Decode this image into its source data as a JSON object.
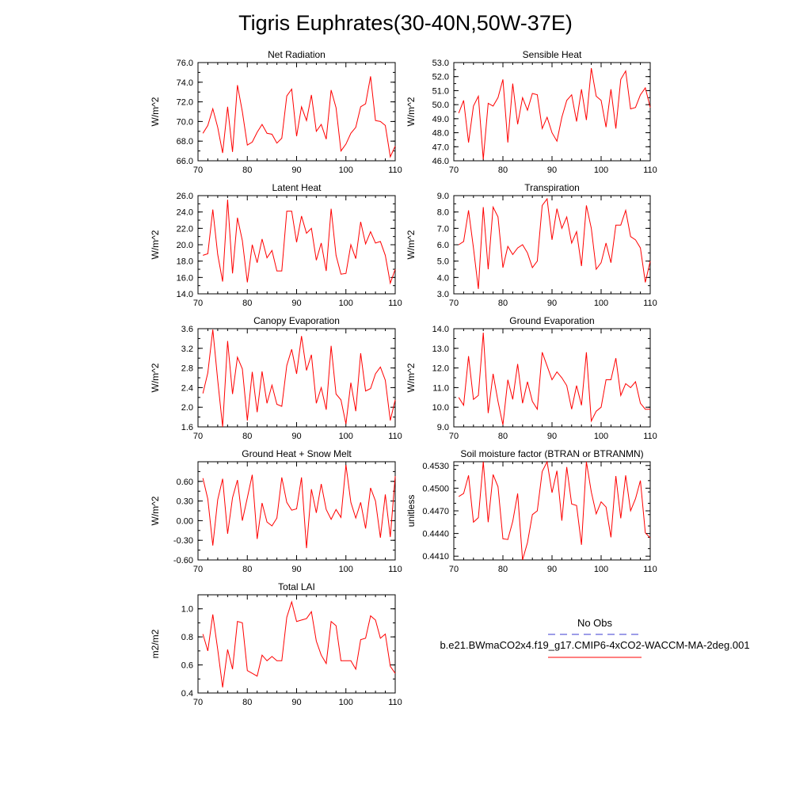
{
  "title": "Tigris Euphrates(30-40N,50W-37E)",
  "colors": {
    "model_line": "#ff0000",
    "obs_line": "#3b3bd0",
    "axis": "#000000"
  },
  "legend": {
    "entries": [
      {
        "label": "No Obs",
        "style": "dashed",
        "color": "#3b3bd0"
      },
      {
        "label": "b.e21.BWmaCO2x4.f19_g17.CMIP6-4xCO2-WACCM-MA-2deg.001",
        "style": "solid",
        "color": "#ff0000"
      }
    ]
  },
  "chart_data": [
    {
      "type": "line",
      "title": "Net Radiation",
      "ylabel": "W/m^2",
      "xlim": [
        70,
        110
      ],
      "xticks": [
        "70",
        "80",
        "90",
        "100",
        "110"
      ],
      "ylim": [
        66,
        76
      ],
      "yticks": [
        "66.0",
        "68.0",
        "70.0",
        "72.0",
        "74.0",
        "76.0"
      ],
      "x_start": 71,
      "values": [
        68.8,
        69.6,
        71.3,
        69.4,
        66.8,
        71.5,
        66.9,
        73.7,
        71.0,
        67.6,
        67.9,
        68.9,
        69.7,
        68.8,
        68.7,
        67.8,
        68.3,
        72.6,
        73.3,
        68.5,
        71.5,
        70.1,
        72.7,
        69.0,
        69.7,
        68.2,
        73.2,
        71.4,
        67.0,
        67.7,
        68.8,
        69.4,
        71.5,
        71.8,
        74.6,
        70.1,
        70.0,
        69.6,
        66.4,
        67.5
      ]
    },
    {
      "type": "line",
      "title": "Sensible Heat",
      "ylabel": "W/m^2",
      "xlim": [
        70,
        110
      ],
      "xticks": [
        "70",
        "80",
        "90",
        "100",
        "110"
      ],
      "ylim": [
        46,
        53
      ],
      "yticks": [
        "46.0",
        "47.0",
        "48.0",
        "49.0",
        "50.0",
        "51.0",
        "52.0",
        "53.0"
      ],
      "x_start": 71,
      "values": [
        49.4,
        50.3,
        47.3,
        49.9,
        50.6,
        46.1,
        50.1,
        49.9,
        50.5,
        51.8,
        47.3,
        51.5,
        48.6,
        50.5,
        49.6,
        50.8,
        50.7,
        48.3,
        49.1,
        48.0,
        47.4,
        49.1,
        50.3,
        50.7,
        48.8,
        51.1,
        48.9,
        52.6,
        50.6,
        50.3,
        48.4,
        51.1,
        48.3,
        51.8,
        52.4,
        49.7,
        49.8,
        50.7,
        51.2,
        49.8
      ]
    },
    {
      "type": "line",
      "title": "Latent Heat",
      "ylabel": "W/m^2",
      "xlim": [
        70,
        110
      ],
      "xticks": [
        "70",
        "80",
        "90",
        "100",
        "110"
      ],
      "ylim": [
        14,
        26
      ],
      "yticks": [
        "14.0",
        "16.0",
        "18.0",
        "20.0",
        "22.0",
        "24.0",
        "26.0"
      ],
      "x_start": 71,
      "values": [
        18.7,
        18.9,
        24.3,
        18.8,
        15.5,
        25.5,
        16.5,
        23.3,
        20.5,
        15.4,
        20.0,
        17.8,
        20.7,
        18.4,
        19.3,
        16.8,
        16.8,
        24.1,
        24.1,
        20.3,
        23.5,
        21.4,
        22.0,
        18.1,
        20.2,
        16.8,
        24.4,
        18.7,
        16.4,
        16.5,
        20.0,
        18.3,
        22.8,
        20.1,
        21.6,
        20.2,
        20.4,
        18.7,
        15.3,
        17.0
      ]
    },
    {
      "type": "line",
      "title": "Transpiration",
      "ylabel": "W/m^2",
      "xlim": [
        70,
        110
      ],
      "xticks": [
        "70",
        "80",
        "90",
        "100",
        "110"
      ],
      "ylim": [
        3,
        9
      ],
      "yticks": [
        "3.0",
        "4.0",
        "5.0",
        "6.0",
        "7.0",
        "8.0",
        "9.0"
      ],
      "x_start": 71,
      "values": [
        6.0,
        6.2,
        8.1,
        5.8,
        3.3,
        8.3,
        4.5,
        8.3,
        7.7,
        4.6,
        5.9,
        5.4,
        5.8,
        6.0,
        5.5,
        4.6,
        5.0,
        8.4,
        8.8,
        6.3,
        8.2,
        7.0,
        7.7,
        6.1,
        6.8,
        4.7,
        8.4,
        7.0,
        4.5,
        4.9,
        6.1,
        4.9,
        7.2,
        7.2,
        8.1,
        6.5,
        6.3,
        5.8,
        3.7,
        5.0
      ]
    },
    {
      "type": "line",
      "title": "Canopy Evaporation",
      "ylabel": "W/m^2",
      "xlim": [
        70,
        110
      ],
      "xticks": [
        "70",
        "80",
        "90",
        "100",
        "110"
      ],
      "ylim": [
        1.6,
        3.6
      ],
      "yticks": [
        "1.6",
        "2.0",
        "2.4",
        "2.8",
        "3.2",
        "3.6"
      ],
      "x_start": 71,
      "values": [
        2.28,
        2.7,
        3.58,
        2.55,
        1.6,
        3.35,
        2.27,
        3.02,
        2.78,
        1.73,
        2.72,
        1.9,
        2.73,
        2.08,
        2.45,
        2.06,
        2.02,
        2.85,
        3.18,
        2.68,
        3.45,
        2.75,
        3.07,
        2.08,
        2.4,
        1.95,
        3.25,
        2.27,
        2.15,
        1.66,
        2.5,
        1.92,
        3.1,
        2.33,
        2.38,
        2.68,
        2.82,
        2.55,
        1.73,
        2.15
      ]
    },
    {
      "type": "line",
      "title": "Ground Evaporation",
      "ylabel": "W/m^2",
      "xlim": [
        70,
        110
      ],
      "xticks": [
        "70",
        "80",
        "90",
        "100",
        "110"
      ],
      "ylim": [
        9,
        14
      ],
      "yticks": [
        "9.0",
        "10.0",
        "11.0",
        "12.0",
        "13.0",
        "14.0"
      ],
      "x_start": 71,
      "values": [
        10.5,
        10.1,
        12.6,
        10.4,
        10.6,
        13.8,
        9.7,
        11.7,
        10.3,
        9.1,
        11.4,
        10.4,
        12.2,
        10.2,
        11.3,
        10.3,
        9.9,
        12.8,
        12.1,
        11.4,
        11.8,
        11.5,
        11.1,
        9.9,
        11.1,
        10.1,
        12.8,
        9.3,
        9.8,
        10.0,
        11.4,
        11.4,
        12.5,
        10.6,
        11.2,
        11.0,
        11.3,
        10.2,
        9.9,
        9.9
      ]
    },
    {
      "type": "line",
      "title": "Ground Heat + Snow Melt",
      "ylabel": "W/m^2",
      "xlim": [
        70,
        110
      ],
      "xticks": [
        "70",
        "80",
        "90",
        "100",
        "110"
      ],
      "ylim": [
        -0.6,
        0.9
      ],
      "yticks": [
        "-0.60",
        "-0.30",
        "0.00",
        "0.30",
        "0.60"
      ],
      "x_start": 71,
      "values": [
        0.65,
        0.33,
        -0.38,
        0.32,
        0.64,
        -0.2,
        0.35,
        0.62,
        0.0,
        0.35,
        0.7,
        -0.28,
        0.27,
        -0.02,
        -0.08,
        0.04,
        0.66,
        0.28,
        0.16,
        0.18,
        0.66,
        -0.42,
        0.48,
        0.12,
        0.56,
        0.17,
        0.02,
        0.17,
        0.05,
        0.85,
        0.28,
        0.04,
        0.28,
        -0.12,
        0.5,
        0.3,
        -0.26,
        0.4,
        -0.25,
        0.68
      ]
    },
    {
      "type": "line",
      "title": "Soil moisture factor (BTRAN or BTRANMN)",
      "ylabel": "unitless",
      "xlim": [
        70,
        110
      ],
      "xticks": [
        "70",
        "80",
        "90",
        "100",
        "110"
      ],
      "ylim": [
        0.4405,
        0.4535
      ],
      "yticks": [
        "0.4410",
        "0.4440",
        "0.4470",
        "0.4500",
        "0.4530"
      ],
      "x_start": 71,
      "values": [
        0.4489,
        0.4493,
        0.4517,
        0.4455,
        0.4461,
        0.4535,
        0.4455,
        0.4518,
        0.4502,
        0.4433,
        0.4432,
        0.4456,
        0.4493,
        0.4405,
        0.4428,
        0.4465,
        0.447,
        0.4522,
        0.4535,
        0.4494,
        0.4523,
        0.4457,
        0.4528,
        0.4479,
        0.4477,
        0.4425,
        0.4535,
        0.4495,
        0.4466,
        0.4482,
        0.4475,
        0.4435,
        0.4516,
        0.446,
        0.4517,
        0.447,
        0.4486,
        0.451,
        0.4441,
        0.4434
      ]
    },
    {
      "type": "line",
      "title": "Total LAI",
      "ylabel": "m2/m2",
      "xlim": [
        70,
        110
      ],
      "xticks": [
        "70",
        "80",
        "90",
        "100",
        "110"
      ],
      "ylim": [
        0.4,
        1.1
      ],
      "yticks": [
        "0.4",
        "0.6",
        "0.8",
        "1.0"
      ],
      "x_start": 71,
      "values": [
        0.82,
        0.7,
        0.96,
        0.71,
        0.44,
        0.71,
        0.57,
        0.91,
        0.9,
        0.56,
        0.54,
        0.52,
        0.67,
        0.63,
        0.66,
        0.63,
        0.63,
        0.94,
        1.05,
        0.91,
        0.92,
        0.93,
        0.98,
        0.77,
        0.67,
        0.61,
        0.91,
        0.88,
        0.63,
        0.63,
        0.63,
        0.57,
        0.78,
        0.79,
        0.95,
        0.92,
        0.79,
        0.82,
        0.59,
        0.54
      ]
    }
  ]
}
